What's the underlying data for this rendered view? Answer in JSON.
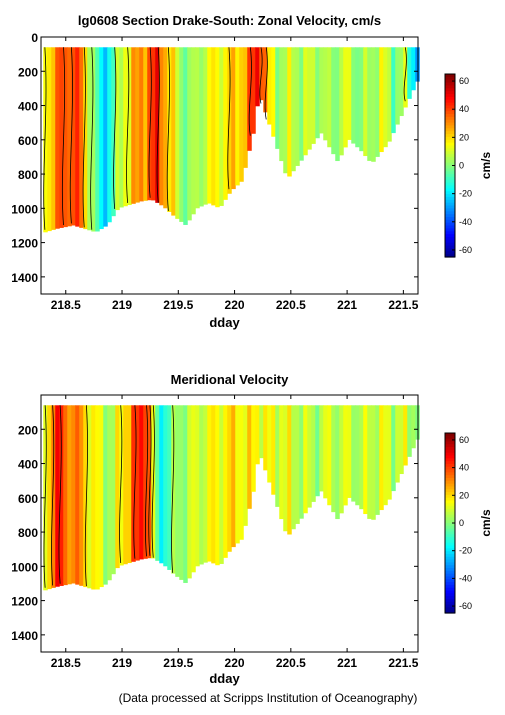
{
  "chart_data": [
    {
      "type": "heatmap",
      "title": "lg0608 Section Drake-South: Zonal Velocity, cm/s",
      "xlabel": "dday",
      "ylabel": "",
      "xlim": [
        218.28,
        221.63
      ],
      "ylim": [
        1500,
        0
      ],
      "y_inverted": true,
      "xticks": [
        "218.5",
        "219",
        "219.5",
        "220",
        "220.5",
        "221",
        "221.5"
      ],
      "yticks": [
        "0",
        "200",
        "400",
        "600",
        "800",
        "1000",
        "1200",
        "1400"
      ],
      "grid": false,
      "colorbar": {
        "label": "cm/s",
        "range": [
          -65,
          65
        ],
        "ticks": [
          "60",
          "40",
          "20",
          "0",
          "-20",
          "-40",
          "-60"
        ]
      },
      "data_top_depth_m": 60,
      "bottom_depth_profile": {
        "x": [
          218.3,
          218.4,
          218.55,
          218.65,
          218.75,
          218.85,
          218.95,
          219.05,
          219.15,
          219.25,
          219.35,
          219.45,
          219.55,
          219.65,
          219.75,
          219.85,
          219.95,
          220.05,
          220.15,
          220.2,
          220.45,
          220.6,
          220.75,
          220.9,
          221.0,
          221.1,
          221.2,
          221.35,
          221.5,
          221.62
        ],
        "depth_m": [
          1140,
          1120,
          1100,
          1120,
          1140,
          1100,
          1000,
          980,
          960,
          950,
          990,
          1050,
          1100,
          1000,
          970,
          1000,
          900,
          840,
          560,
          330,
          830,
          700,
          560,
          730,
          600,
          660,
          740,
          620,
          410,
          240
        ]
      },
      "velocity_profile": {
        "x": [
          218.3,
          218.4,
          218.5,
          218.6,
          218.7,
          218.8,
          218.9,
          219.0,
          219.1,
          219.2,
          219.3,
          219.4,
          219.5,
          219.6,
          219.7,
          219.8,
          219.9,
          220.0,
          220.1,
          220.2,
          220.3,
          220.4,
          220.5,
          220.6,
          220.7,
          220.8,
          220.9,
          221.0,
          221.1,
          221.2,
          221.3,
          221.4,
          221.5,
          221.6
        ],
        "u_cm_s": [
          18,
          32,
          42,
          38,
          10,
          -22,
          -8,
          15,
          25,
          35,
          45,
          22,
          5,
          0,
          10,
          15,
          18,
          22,
          30,
          55,
          12,
          5,
          10,
          5,
          10,
          2,
          6,
          10,
          0,
          6,
          12,
          0,
          5,
          -25
        ]
      }
    },
    {
      "type": "heatmap",
      "title": "Meridional Velocity",
      "xlabel": "dday",
      "ylabel": "",
      "xlim": [
        218.28,
        221.63
      ],
      "ylim": [
        1500,
        0
      ],
      "y_inverted": true,
      "xticks": [
        "218.5",
        "219",
        "219.5",
        "220",
        "220.5",
        "221",
        "221.5"
      ],
      "yticks": [
        "200",
        "400",
        "600",
        "800",
        "1000",
        "1200",
        "1400"
      ],
      "grid": false,
      "colorbar": {
        "label": "cm/s",
        "range": [
          -65,
          65
        ],
        "ticks": [
          "60",
          "40",
          "20",
          "0",
          "-20",
          "-40",
          "-60"
        ]
      },
      "data_top_depth_m": 60,
      "bottom_depth_profile": {
        "x": [
          218.3,
          218.4,
          218.55,
          218.65,
          218.75,
          218.85,
          218.95,
          219.05,
          219.15,
          219.25,
          219.35,
          219.45,
          219.55,
          219.65,
          219.75,
          219.85,
          219.95,
          220.05,
          220.15,
          220.2,
          220.45,
          220.6,
          220.75,
          220.9,
          221.0,
          221.1,
          221.2,
          221.35,
          221.5,
          221.62
        ],
        "depth_m": [
          1140,
          1120,
          1100,
          1120,
          1140,
          1100,
          1000,
          980,
          960,
          950,
          990,
          1050,
          1100,
          1000,
          970,
          1000,
          900,
          840,
          560,
          330,
          830,
          700,
          560,
          730,
          600,
          660,
          740,
          620,
          410,
          240
        ]
      },
      "velocity_profile": {
        "x": [
          218.3,
          218.4,
          218.5,
          218.6,
          218.7,
          218.8,
          218.9,
          219.0,
          219.1,
          219.2,
          219.3,
          219.4,
          219.5,
          219.6,
          219.7,
          219.8,
          219.9,
          220.0,
          220.1,
          220.2,
          220.3,
          220.4,
          220.5,
          220.6,
          220.7,
          220.8,
          220.9,
          221.0,
          221.1,
          221.2,
          221.3,
          221.4,
          221.5,
          221.6
        ],
        "v_cm_s": [
          15,
          45,
          35,
          30,
          18,
          10,
          5,
          22,
          38,
          52,
          -15,
          -5,
          5,
          8,
          12,
          15,
          18,
          20,
          16,
          18,
          12,
          14,
          10,
          8,
          5,
          10,
          8,
          10,
          6,
          10,
          12,
          8,
          10,
          5
        ]
      }
    }
  ],
  "footer": {
    "credit": "(Data processed at Scripps Institution of Oceanography)"
  }
}
